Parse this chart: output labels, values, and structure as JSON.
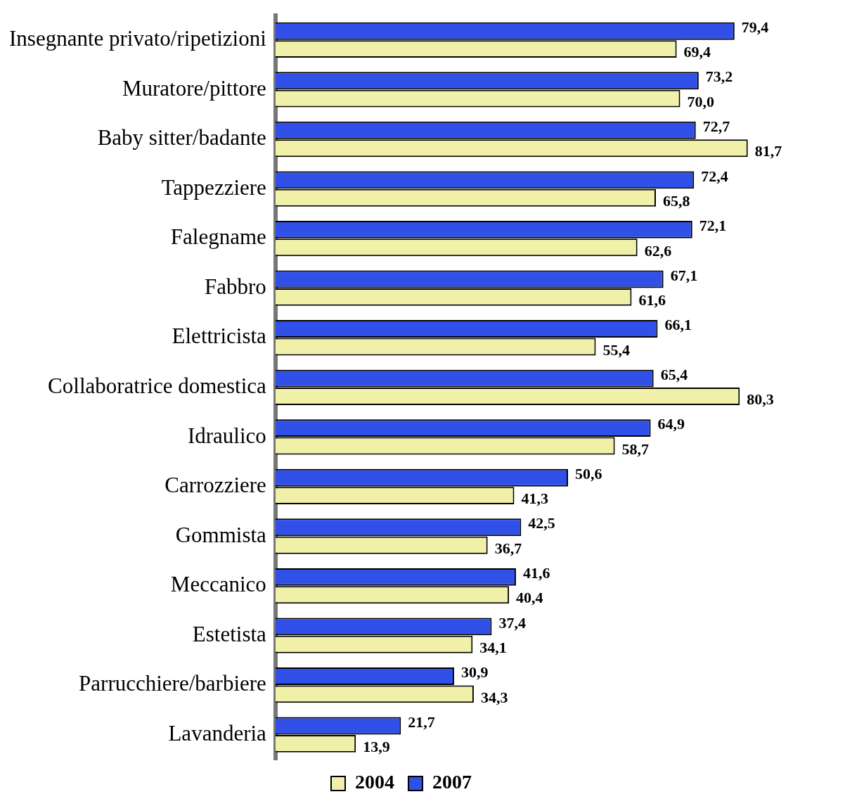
{
  "chart_data": {
    "type": "bar",
    "orientation": "horizontal",
    "categories": [
      "Insegnante privato/ripetizioni",
      "Muratore/pittore",
      "Baby sitter/badante",
      "Tappezziere",
      "Falegname",
      "Fabbro",
      "Elettricista",
      "Collaboratrice domestica",
      "Idraulico",
      "Carrozziere",
      "Gommista",
      "Meccanico",
      "Estetista",
      "Parrucchiere/barbiere",
      "Lavanderia"
    ],
    "series": [
      {
        "name": "2007",
        "color": "#3050e8",
        "values": [
          79.4,
          73.2,
          72.7,
          72.4,
          72.1,
          67.1,
          66.1,
          65.4,
          64.9,
          50.6,
          42.5,
          41.6,
          37.4,
          30.9,
          21.7
        ],
        "value_labels": [
          "79,4",
          "73,2",
          "72,7",
          "72,4",
          "72,1",
          "67,1",
          "66,1",
          "65,4",
          "64,9",
          "50,6",
          "42,5",
          "41,6",
          "37,4",
          "30,9",
          "21,7"
        ]
      },
      {
        "name": "2004",
        "color": "#f0f0a8",
        "values": [
          69.4,
          70.0,
          81.7,
          65.8,
          62.6,
          61.6,
          55.4,
          80.3,
          58.7,
          41.3,
          36.7,
          40.4,
          34.1,
          34.3,
          13.9
        ],
        "value_labels": [
          "69,4",
          "70,0",
          "81,7",
          "65,8",
          "62,6",
          "61,6",
          "55,4",
          "80,3",
          "58,7",
          "41,3",
          "36,7",
          "40,4",
          "34,1",
          "34,3",
          "13,9"
        ]
      }
    ],
    "legend": "bottom",
    "grid": false,
    "tick_labels": "y"
  }
}
